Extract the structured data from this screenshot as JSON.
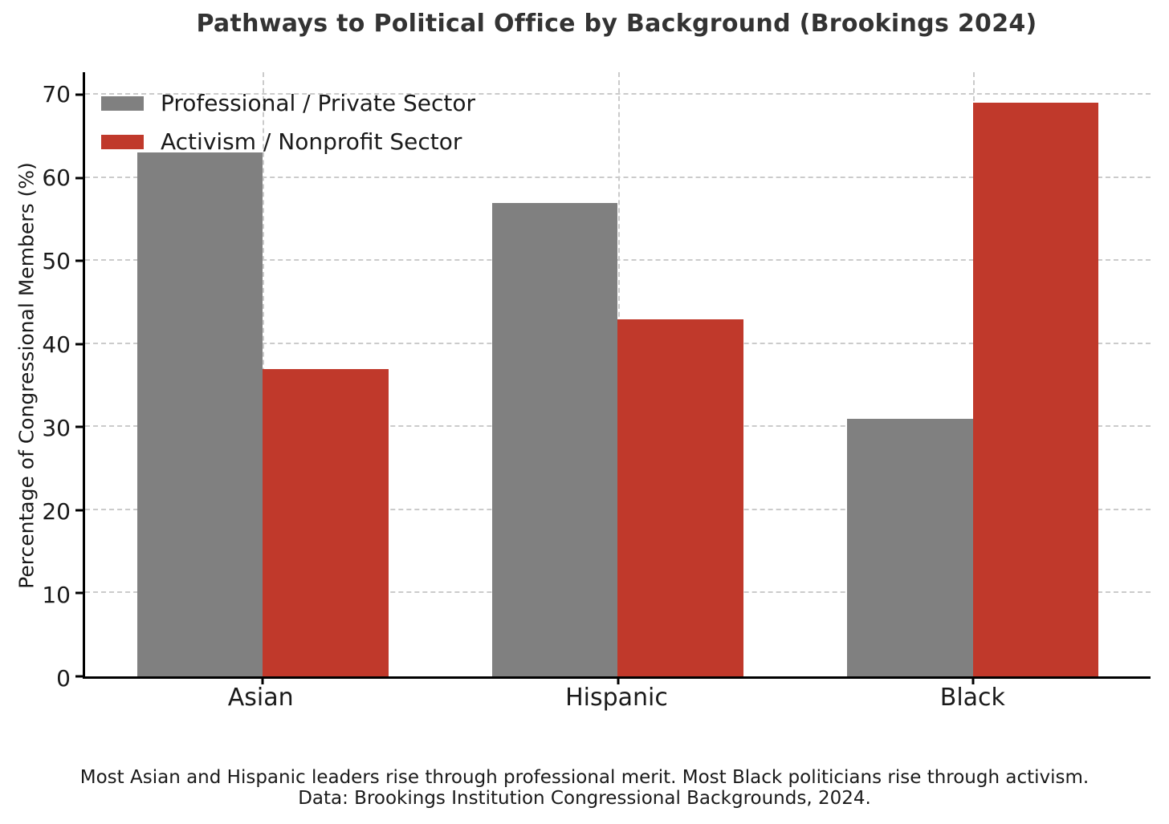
{
  "chart_data": {
    "type": "bar",
    "title": "Pathways to Political Office by Background (Brookings 2024)",
    "categories": [
      "Asian",
      "Hispanic",
      "Black"
    ],
    "series": [
      {
        "name": "Professional / Private Sector",
        "color": "#808080",
        "values": [
          63,
          57,
          31
        ]
      },
      {
        "name": "Activism / Nonprofit Sector",
        "color": "#c0392b",
        "values": [
          37,
          43,
          69
        ]
      }
    ],
    "xlabel": "",
    "ylabel": "Percentage of Congressional Members (%)",
    "ylim": [
      0,
      72.7
    ],
    "yticks": [
      0,
      10,
      20,
      30,
      40,
      50,
      60,
      70
    ],
    "grid": "dashed",
    "grid_color": "#cbcbcb",
    "legend_position": "upper left",
    "legend_frame": false
  },
  "footer": {
    "line1": "Most Asian and Hispanic leaders rise through professional merit. Most Black politicians rise through activism.",
    "line2": "Data: Brookings Institution Congressional Backgrounds, 2024."
  }
}
